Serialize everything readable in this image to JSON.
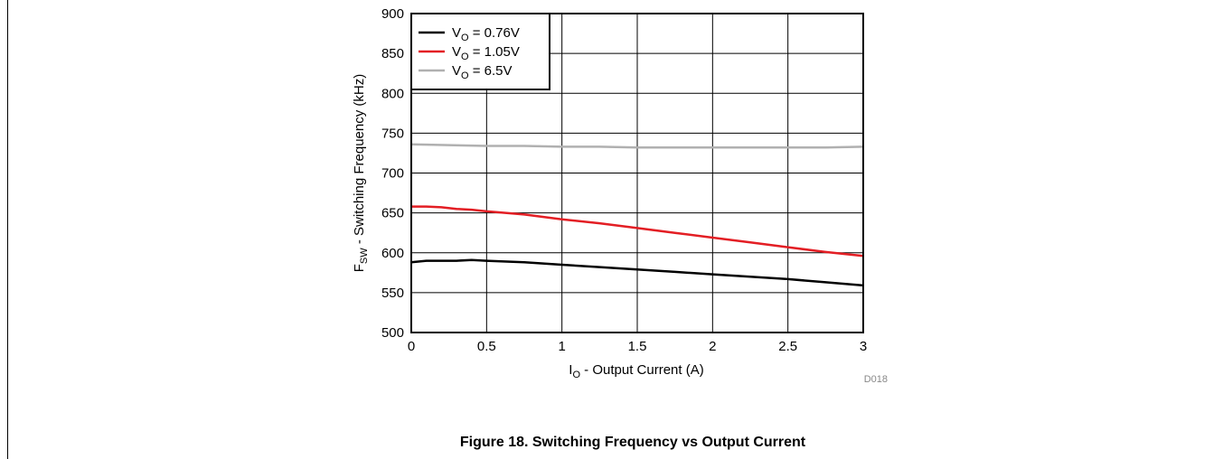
{
  "figure": {
    "caption": "Figure 18. Switching Frequency vs Output Current",
    "code": "D018"
  },
  "chart_data": {
    "type": "line",
    "xlabel": {
      "main": "I",
      "sub": "O",
      "rest": " - Output Current (A)"
    },
    "ylabel": {
      "main": "F",
      "sub": "SW",
      "rest": " - Switching Frequency (kHz)"
    },
    "xlim": [
      0,
      3
    ],
    "ylim": [
      500,
      900
    ],
    "x_ticks": [
      0,
      0.5,
      1,
      1.5,
      2,
      2.5,
      3
    ],
    "x_tick_labels": [
      "0",
      "0.5",
      "1",
      "1.5",
      "2",
      "2.5",
      "3"
    ],
    "y_ticks": [
      500,
      550,
      600,
      650,
      700,
      750,
      800,
      850,
      900
    ],
    "y_tick_labels": [
      "500",
      "550",
      "600",
      "650",
      "700",
      "750",
      "800",
      "850",
      "900"
    ],
    "grid": true,
    "legend_position": "top-left",
    "series": [
      {
        "name": "V_O = 0.76V",
        "legend": {
          "main": "V",
          "sub": "O",
          "rest": " = 0.76V"
        },
        "color": "#000000",
        "x": [
          0,
          0.1,
          0.2,
          0.3,
          0.4,
          0.5,
          0.75,
          1,
          1.25,
          1.5,
          1.75,
          2,
          2.25,
          2.5,
          2.75,
          3
        ],
        "y": [
          588,
          590,
          590,
          590,
          591,
          590,
          588,
          585,
          582,
          579,
          576,
          573,
          570,
          567,
          563,
          559
        ]
      },
      {
        "name": "V_O = 1.05V",
        "legend": {
          "main": "V",
          "sub": "O",
          "rest": " = 1.05V"
        },
        "color": "#e31e24",
        "x": [
          0,
          0.1,
          0.2,
          0.3,
          0.4,
          0.5,
          0.75,
          1,
          1.25,
          1.5,
          1.75,
          2,
          2.25,
          2.5,
          2.75,
          3
        ],
        "y": [
          658,
          658,
          657,
          655,
          654,
          652,
          648,
          642,
          637,
          631,
          625,
          619,
          613,
          607,
          601,
          596
        ]
      },
      {
        "name": "V_O = 6.5V",
        "legend": {
          "main": "V",
          "sub": "O",
          "rest": " = 6.5V"
        },
        "color": "#b0b0b0",
        "x": [
          0,
          0.25,
          0.5,
          0.75,
          1,
          1.25,
          1.5,
          1.75,
          2,
          2.25,
          2.5,
          2.75,
          3
        ],
        "y": [
          736,
          735,
          734,
          734,
          733,
          733,
          732,
          732,
          732,
          732,
          732,
          732,
          733
        ]
      }
    ]
  }
}
